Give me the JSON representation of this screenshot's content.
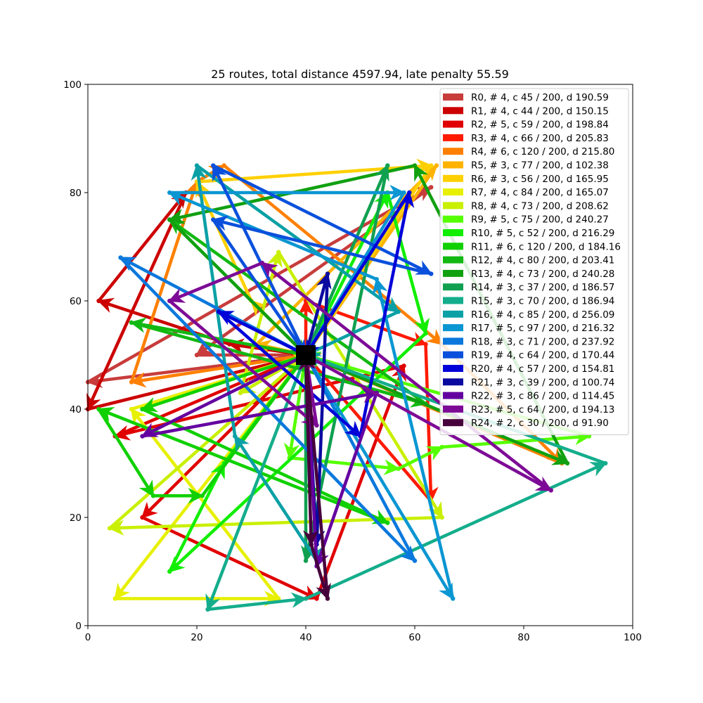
{
  "chart_data": {
    "type": "line",
    "title": "25 routes, total distance 4597.94, late penalty 55.59",
    "xlabel": "",
    "ylabel": "",
    "xlim": [
      0,
      100
    ],
    "ylim": [
      0,
      100
    ],
    "xticks": [
      0,
      20,
      40,
      60,
      80,
      100
    ],
    "yticks": [
      0,
      20,
      40,
      60,
      80,
      100
    ],
    "grid": false,
    "legend_position": "top-right",
    "depot": {
      "x": 40,
      "y": 50,
      "marker": "square",
      "color": "#000000"
    },
    "series": [
      {
        "name": "R0, # 4, c 45 / 200, d 190.59",
        "color": "#c83c3c",
        "points": [
          [
            40,
            50
          ],
          [
            0,
            45
          ],
          [
            63,
            81
          ],
          [
            20,
            50
          ],
          [
            40,
            50
          ]
        ]
      },
      {
        "name": "R1, # 4, c 44 / 200, d 150.15",
        "color": "#cc0000",
        "points": [
          [
            40,
            50
          ],
          [
            26,
            52
          ],
          [
            2,
            60
          ],
          [
            18,
            80
          ],
          [
            0,
            40
          ],
          [
            40,
            50
          ]
        ]
      },
      {
        "name": "R2, # 5, c 59 / 200, d 198.84",
        "color": "#e00000",
        "points": [
          [
            40,
            50
          ],
          [
            10,
            20
          ],
          [
            42,
            5
          ],
          [
            58,
            48
          ],
          [
            5,
            35
          ],
          [
            40,
            50
          ]
        ]
      },
      {
        "name": "R3, # 4, c 66 / 200, d 205.83",
        "color": "#ff1a00",
        "points": [
          [
            40,
            50
          ],
          [
            40,
            60
          ],
          [
            62,
            52
          ],
          [
            63,
            23
          ],
          [
            40,
            50
          ]
        ]
      },
      {
        "name": "R4, # 6, c 120 / 200, d 215.80",
        "color": "#ff8000",
        "points": [
          [
            40,
            50
          ],
          [
            8,
            45
          ],
          [
            20,
            82
          ],
          [
            25,
            85
          ],
          [
            65,
            52
          ],
          [
            87,
            30
          ],
          [
            40,
            50
          ]
        ]
      },
      {
        "name": "R5, # 3, c 77 / 200, d 102.38",
        "color": "#ffb300",
        "points": [
          [
            40,
            50
          ],
          [
            31,
            52
          ],
          [
            64,
            85
          ],
          [
            40,
            50
          ]
        ]
      },
      {
        "name": "R6, # 3, c 56 / 200, d 165.95",
        "color": "#ffd000",
        "points": [
          [
            40,
            50
          ],
          [
            30,
            60
          ],
          [
            20,
            82
          ],
          [
            63,
            85
          ],
          [
            40,
            50
          ]
        ]
      },
      {
        "name": "R7, # 4, c 84 / 200, d 165.07",
        "color": "#e6f000",
        "points": [
          [
            40,
            50
          ],
          [
            5,
            5
          ],
          [
            35,
            5
          ],
          [
            8,
            40
          ],
          [
            40,
            50
          ]
        ]
      },
      {
        "name": "R8, # 4, c 73 / 200, d 208.62",
        "color": "#c8f000",
        "points": [
          [
            40,
            50
          ],
          [
            28,
            43
          ],
          [
            35,
            69
          ],
          [
            65,
            20
          ],
          [
            4,
            18
          ],
          [
            40,
            50
          ]
        ]
      },
      {
        "name": "R9, # 5, c 75 / 200, d 240.27",
        "color": "#55ff00",
        "points": [
          [
            40,
            50
          ],
          [
            37,
            31
          ],
          [
            57,
            29
          ],
          [
            65,
            33
          ],
          [
            92,
            35
          ],
          [
            40,
            50
          ]
        ]
      },
      {
        "name": "R10, # 5, c 52 / 200, d 216.29",
        "color": "#11ee00",
        "points": [
          [
            40,
            50
          ],
          [
            55,
            80
          ],
          [
            62,
            54
          ],
          [
            15,
            10
          ],
          [
            25,
            30
          ],
          [
            40,
            50
          ]
        ]
      },
      {
        "name": "R11, # 6, c 120 / 200, d 184.16",
        "color": "#10d000",
        "points": [
          [
            40,
            50
          ],
          [
            10,
            40
          ],
          [
            55,
            19
          ],
          [
            2,
            40
          ],
          [
            12,
            24
          ],
          [
            21,
            24
          ],
          [
            40,
            50
          ]
        ]
      },
      {
        "name": "R12, # 4, c 80 / 200, d 203.41",
        "color": "#12b812",
        "points": [
          [
            40,
            50
          ],
          [
            8,
            56
          ],
          [
            62,
            41
          ],
          [
            15,
            75
          ],
          [
            40,
            50
          ]
        ]
      },
      {
        "name": "R13, # 4, c 73 / 200, d 240.28",
        "color": "#10a010",
        "points": [
          [
            40,
            50
          ],
          [
            88,
            30
          ],
          [
            60,
            85
          ],
          [
            15,
            75
          ],
          [
            40,
            50
          ]
        ]
      },
      {
        "name": "R14, # 3, c 37 / 200, d 186.57",
        "color": "#10a050",
        "points": [
          [
            40,
            50
          ],
          [
            55,
            85
          ],
          [
            40,
            12
          ],
          [
            40,
            50
          ]
        ]
      },
      {
        "name": "R15, # 3, c 70 / 200, d 186.94",
        "color": "#14ad8c",
        "points": [
          [
            40,
            50
          ],
          [
            22,
            3
          ],
          [
            40,
            5
          ],
          [
            95,
            30
          ],
          [
            40,
            50
          ]
        ]
      },
      {
        "name": "R16, # 4, c 85 / 200, d 256.09",
        "color": "#0aa0a5",
        "points": [
          [
            40,
            50
          ],
          [
            42,
            12
          ],
          [
            27,
            35
          ],
          [
            20,
            85
          ],
          [
            57,
            58
          ],
          [
            40,
            50
          ]
        ]
      },
      {
        "name": "R17, # 5, c 97 / 200, d 216.32",
        "color": "#0a96d2",
        "points": [
          [
            40,
            50
          ],
          [
            67,
            5
          ],
          [
            53,
            64
          ],
          [
            15,
            80
          ],
          [
            58,
            80
          ],
          [
            40,
            50
          ]
        ]
      },
      {
        "name": "R18, # 3, c 71 / 200, d 237.92",
        "color": "#0a78dc",
        "points": [
          [
            40,
            50
          ],
          [
            6,
            68
          ],
          [
            60,
            12
          ],
          [
            40,
            50
          ]
        ]
      },
      {
        "name": "R19, # 4, c 64 / 200, d 170.44",
        "color": "#0a50dc",
        "points": [
          [
            40,
            50
          ],
          [
            23,
            85
          ],
          [
            63,
            65
          ],
          [
            23,
            75
          ],
          [
            40,
            50
          ]
        ]
      },
      {
        "name": "R20, # 4, c 57 / 200, d 154.81",
        "color": "#0000d8",
        "points": [
          [
            40,
            50
          ],
          [
            24,
            58
          ],
          [
            50,
            35
          ],
          [
            59,
            80
          ],
          [
            40,
            50
          ]
        ]
      },
      {
        "name": "R21, # 3, c 39 / 200, d 100.74",
        "color": "#0a0aa0",
        "points": [
          [
            40,
            50
          ],
          [
            44,
            65
          ],
          [
            42,
            15
          ],
          [
            40,
            50
          ]
        ]
      },
      {
        "name": "R22, # 3, c 86 / 200, d 114.45",
        "color": "#6400a0",
        "points": [
          [
            40,
            50
          ],
          [
            10,
            35
          ],
          [
            53,
            43
          ],
          [
            42,
            11
          ],
          [
            40,
            50
          ]
        ]
      },
      {
        "name": "R23, # 5, c 64 / 200, d 194.13",
        "color": "#7d0a96",
        "points": [
          [
            40,
            50
          ],
          [
            85,
            25
          ],
          [
            32,
            67
          ],
          [
            15,
            60
          ],
          [
            42,
            37
          ],
          [
            40,
            50
          ]
        ]
      },
      {
        "name": "R24, # 2, c 30 / 200, d 91.90",
        "color": "#46003c",
        "points": [
          [
            40,
            50
          ],
          [
            41,
            15
          ],
          [
            44,
            5
          ],
          [
            40,
            50
          ]
        ]
      }
    ]
  }
}
